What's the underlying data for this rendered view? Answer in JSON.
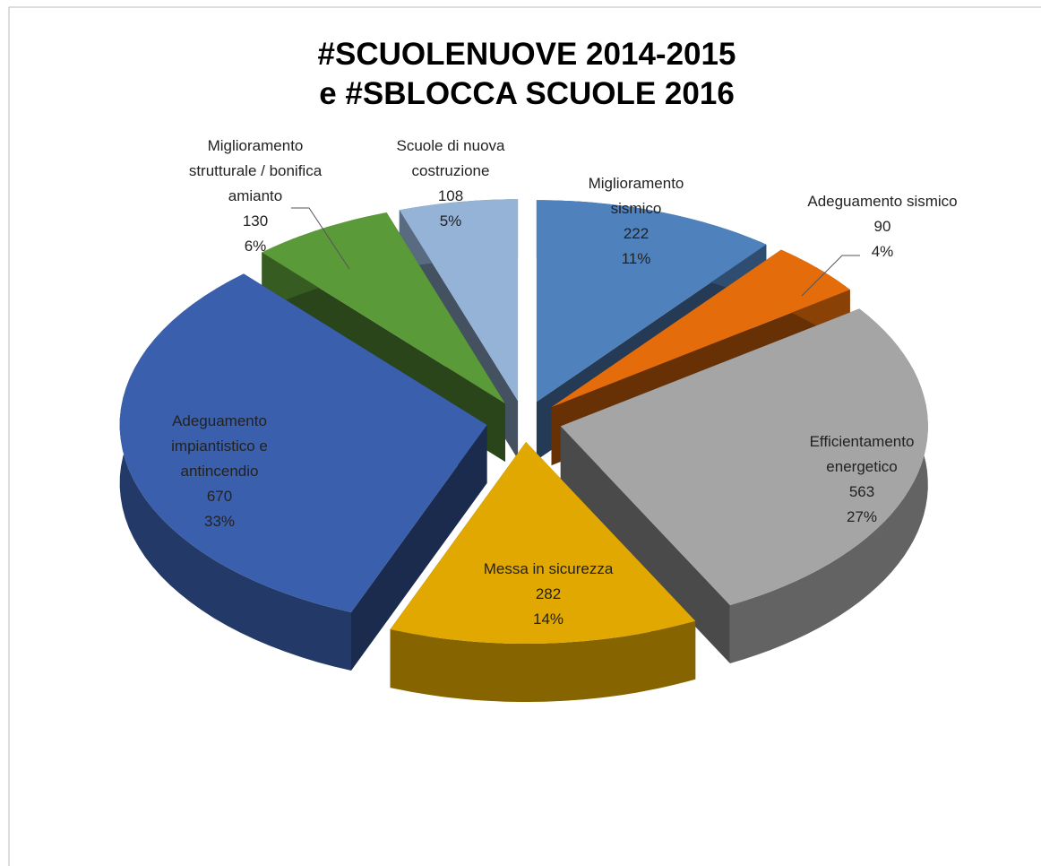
{
  "chart_data": {
    "type": "pie",
    "title": "#SCUOLENUOVE 2014-2015\ne #SBLOCCA SCUOLE 2016",
    "categories": [
      "Miglioramento\nsismico",
      "Adeguamento sismico",
      "Efficientamento\nenergetico",
      "Messa in sicurezza",
      "Adeguamento\nimpiantistico e\nantincendio",
      "Miglioramento\nstrutturale / bonifica\namianto",
      "Scuole di nuova\ncostruzione"
    ],
    "values": [
      222,
      90,
      563,
      282,
      670,
      130,
      108
    ],
    "percent_labels": [
      "11%",
      "4%",
      "27%",
      "14%",
      "33%",
      "6%",
      "5%"
    ],
    "colors": [
      "#4f81bd",
      "#e46c0a",
      "#a5a5a5",
      "#e0a800",
      "#3a5fad",
      "#5b9a38",
      "#95b3d7"
    ]
  }
}
